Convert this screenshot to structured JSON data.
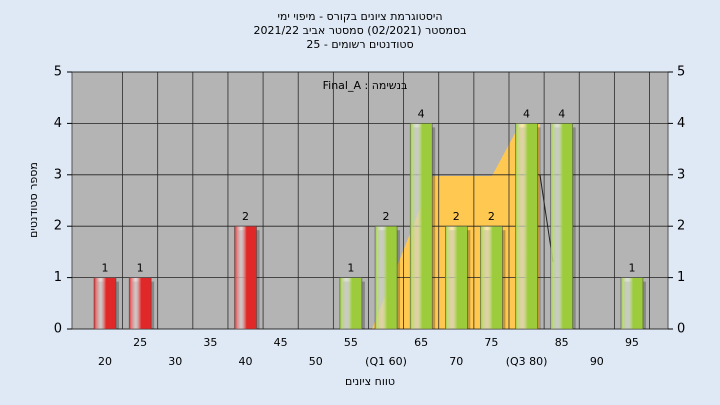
{
  "chart_data": {
    "type": "bar",
    "title": "היסטוגרמת ציונים בקורס - מיפוי ימי",
    "subtitle": "בסמסטר  (02/2021)  סמסטר אביב 2021/22",
    "subtitle2": "סטודנטים רשומים - 25",
    "annotation": "Final_A : בנשימה",
    "x_label": "טווח ציונים",
    "y_label": "מספר סטודנטים",
    "categories": [
      "20",
      "25",
      "30",
      "35",
      "40",
      "45",
      "50",
      "55",
      "(Q1 60)",
      "65",
      "70",
      "75",
      "(Q3 80)",
      "85",
      "90",
      "95"
    ],
    "values": [
      1,
      1,
      0,
      0,
      2,
      0,
      0,
      1,
      2,
      4,
      2,
      2,
      4,
      4,
      0,
      1
    ],
    "colors": [
      "#e02828",
      "#e02828",
      "#e02828",
      "#e02828",
      "#e02828",
      "#e02828",
      "#e02828",
      "#9ccc3c",
      "#9ccc3c",
      "#9ccc3c",
      "#9ccc3c",
      "#9ccc3c",
      "#9ccc3c",
      "#9ccc3c",
      "#9ccc3c",
      "#9ccc3c"
    ],
    "ylim": [
      0,
      5
    ],
    "yticks": [
      0,
      1,
      2,
      3,
      4,
      5
    ],
    "y2lim": [
      0,
      5
    ],
    "y2ticks": [
      0,
      1,
      2,
      3,
      4,
      5
    ],
    "grid": true
  }
}
